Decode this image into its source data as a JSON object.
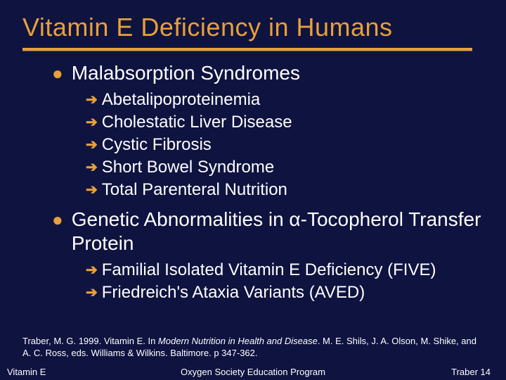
{
  "colors": {
    "background": "#0f1340",
    "accent": "#e8a038",
    "text": "#ffffff"
  },
  "typography": {
    "title_fontsize": 36,
    "level1_fontsize": 28,
    "level2_fontsize": 24,
    "citation_fontsize": 13,
    "footer_fontsize": 13,
    "font_family": "Arial"
  },
  "title": "Vitamin E Deficiency in Humans",
  "bullets": [
    {
      "text": "Malabsorption Syndromes",
      "sub": [
        "Abetalipoproteinemia",
        "Cholestatic Liver Disease",
        "Cystic Fibrosis",
        "Short Bowel Syndrome",
        "Total Parenteral Nutrition"
      ]
    },
    {
      "text": "Genetic Abnormalities in α-Tocopherol Transfer Protein",
      "sub": [
        "Familial Isolated Vitamin E Deficiency (FIVE)",
        "Friedreich's Ataxia Variants (AVED)"
      ]
    }
  ],
  "citation": {
    "pre": "Traber, M. G. 1999. Vitamin E. In ",
    "italic": "Modern Nutrition in Health and Disease",
    "post": ". M. E. Shils, J. A. Olson, M. Shike, and A. C. Ross, eds. Williams & Wilkins. Baltimore. p 347-362."
  },
  "footer": {
    "left": "Vitamin E",
    "center": "Oxygen Society Education Program",
    "right": "Traber 14"
  }
}
